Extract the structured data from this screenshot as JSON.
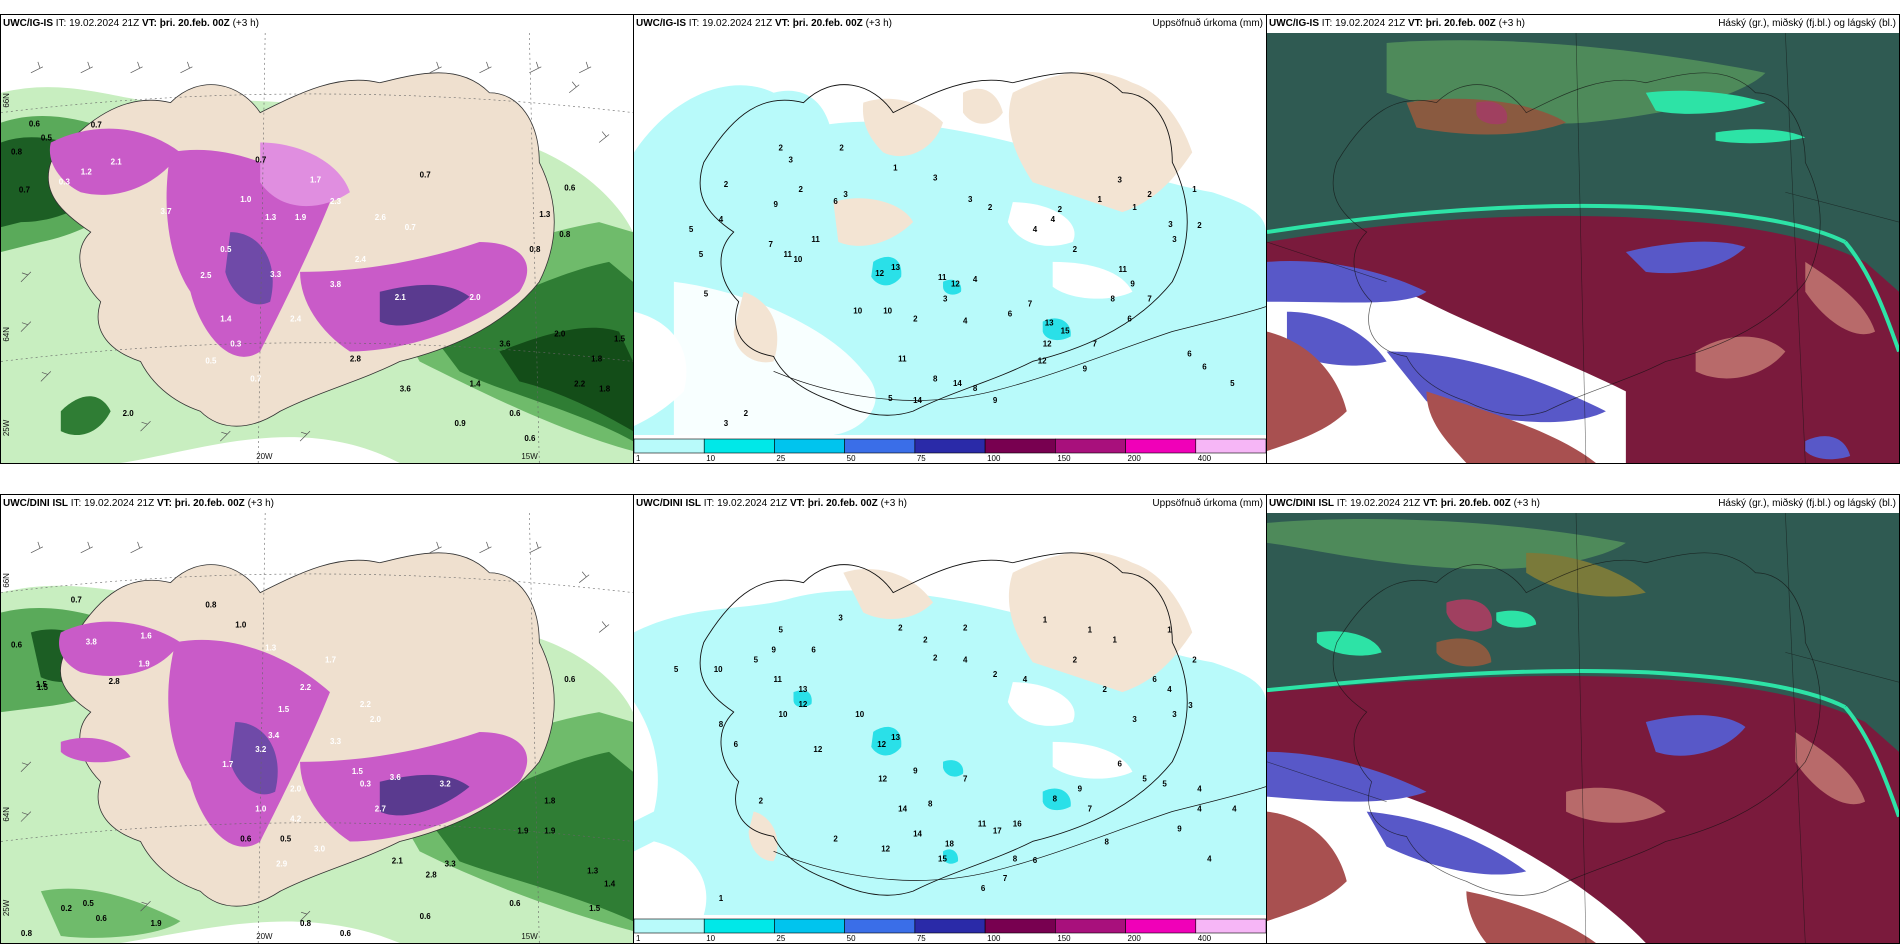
{
  "panels": [
    {
      "id": "r1c1",
      "header": {
        "model": "UWC/IG-IS",
        "it_label": "IT:",
        "it": "19.02.2024 21Z",
        "vt_label": "VT:",
        "vt": "þri. 20.feb. 00Z",
        "lead": "(+3 h)",
        "right": ""
      },
      "axes": {
        "lon_labels": [
          "20W",
          "15W"
        ],
        "lat_labels": [
          "66N",
          "64N",
          "25W"
        ]
      },
      "values": [
        "0.6",
        "0.5",
        "0.8",
        "0.7",
        "1.2",
        "2.1",
        "0.3",
        "3.7",
        "0.5",
        "1.0",
        "1.3",
        "2.3",
        "2.6",
        "0.7",
        "0.7",
        "1.9",
        "1.7",
        "2.5",
        "2.4",
        "3.3",
        "3.8",
        "2.4",
        "1.4",
        "0.3",
        "0.5",
        "0.7",
        "2.1",
        "2.0",
        "2.0",
        "3.6",
        "1.8",
        "2.2",
        "0.6",
        "0.6",
        "2.8",
        "3.6",
        "1.4",
        "0.9",
        "2.0",
        "1.8",
        "1.5",
        "0.6",
        "1.3",
        "0.8",
        "0.8",
        "0.7",
        "0.7"
      ]
    },
    {
      "id": "r1c2",
      "header": {
        "model": "UWC/IG-IS",
        "it_label": "IT:",
        "it": "19.02.2024 21Z",
        "vt_label": "VT:",
        "vt": "þri. 20.feb. 00Z",
        "lead": "(+3 h)",
        "right": "Uppsöfnuð úrkoma (mm)"
      },
      "values": [
        "2",
        "2",
        "5",
        "5",
        "5",
        "4",
        "9",
        "11",
        "10",
        "11",
        "7",
        "6",
        "3",
        "3",
        "2",
        "2",
        "1",
        "3",
        "3",
        "2",
        "1",
        "2",
        "1",
        "4",
        "4",
        "3",
        "3",
        "2",
        "12",
        "13",
        "11",
        "12",
        "10",
        "10",
        "2",
        "4",
        "4",
        "11",
        "6",
        "5",
        "7",
        "8",
        "8",
        "9",
        "3",
        "14",
        "14",
        "12",
        "12",
        "13",
        "15",
        "9",
        "7",
        "6",
        "6",
        "6",
        "5",
        "3",
        "2",
        "8",
        "9",
        "11",
        "7",
        "2",
        "1",
        "2",
        "3"
      ],
      "colorbar": {
        "ticks": [
          "1",
          "10",
          "25",
          "50",
          "75",
          "100",
          "150",
          "200",
          "400"
        ],
        "colors": [
          "#b8fafa",
          "#00e8e8",
          "#00c4ee",
          "#3a6ee8",
          "#2a2aa8",
          "#780050",
          "#a8107c",
          "#f000b8",
          "#f6b6f6"
        ]
      }
    },
    {
      "id": "r1c3",
      "header": {
        "model": "UWC/IG-IS",
        "it_label": "IT:",
        "it": "19.02.2024 21Z",
        "vt_label": "VT:",
        "vt": "þri. 20.feb. 00Z",
        "lead": "(+3 h)",
        "right": "Háský (gr.), miðský (fj.bl.) og lágský (bl.)"
      }
    },
    {
      "id": "r2c1",
      "header": {
        "model": "UWC/DINI ISL",
        "it_label": "IT:",
        "it": "19.02.2024 21Z",
        "vt_label": "VT:",
        "vt": "þri. 20.feb. 00Z",
        "lead": "(+3 h)",
        "right": ""
      },
      "axes": {
        "lon_labels": [
          "20W",
          "15W"
        ],
        "lat_labels": [
          "66N",
          "64N",
          "25W"
        ]
      },
      "values": [
        "0.7",
        "0.6",
        "1.5",
        "2.8",
        "1.6",
        "1.9",
        "3.8",
        "0.8",
        "1.0",
        "1.3",
        "1.5",
        "2.2",
        "1.7",
        "2.2",
        "2.0",
        "3.4",
        "3.2",
        "1.7",
        "3.3",
        "2.0",
        "1.5",
        "0.3",
        "3.6",
        "3.2",
        "2.7",
        "4.2",
        "2.9",
        "3.0",
        "1.0",
        "0.5",
        "0.6",
        "1.8",
        "1.9",
        "1.9",
        "1.3",
        "2.1",
        "2.8",
        "3.3",
        "1.5",
        "1.4",
        "0.8",
        "0.6",
        "0.6",
        "0.6",
        "0.2",
        "0.5",
        "0.6",
        "1.9",
        "0.8",
        "1.5",
        "0.6"
      ]
    },
    {
      "id": "r2c2",
      "header": {
        "model": "UWC/DINI ISL",
        "it_label": "IT:",
        "it": "19.02.2024 21Z",
        "vt_label": "VT:",
        "vt": "þri. 20.feb. 00Z",
        "lead": "(+3 h)",
        "right": "Uppsöfnuð úrkoma (mm)"
      },
      "values": [
        "5",
        "10",
        "5",
        "8",
        "6",
        "9",
        "11",
        "13",
        "12",
        "10",
        "3",
        "6",
        "5",
        "2",
        "2",
        "2",
        "1",
        "1",
        "1",
        "2",
        "4",
        "2",
        "4",
        "6",
        "4",
        "3",
        "3",
        "2",
        "12",
        "13",
        "10",
        "12",
        "12",
        "9",
        "7",
        "14",
        "18",
        "17",
        "11",
        "15",
        "16",
        "8",
        "9",
        "7",
        "6",
        "5",
        "5",
        "4",
        "4",
        "4",
        "3",
        "2",
        "2",
        "1",
        "2",
        "2",
        "7",
        "6",
        "8",
        "9",
        "14",
        "12",
        "8",
        "8",
        "6",
        "4",
        "1"
      ],
      "colorbar": {
        "ticks": [
          "1",
          "10",
          "25",
          "50",
          "75",
          "100",
          "150",
          "200",
          "400"
        ],
        "colors": [
          "#b8fafa",
          "#00e8e8",
          "#00c4ee",
          "#3a6ee8",
          "#2a2aa8",
          "#780050",
          "#a8107c",
          "#f000b8",
          "#f6b6f6"
        ]
      }
    },
    {
      "id": "r2c3",
      "header": {
        "model": "UWC/DINI ISL",
        "it_label": "IT:",
        "it": "19.02.2024 21Z",
        "vt_label": "VT:",
        "vt": "þri. 20.feb. 00Z",
        "lead": "(+3 h)",
        "right": "Háský (gr.), miðský (fj.bl.) og lágský (bl.)"
      }
    }
  ]
}
